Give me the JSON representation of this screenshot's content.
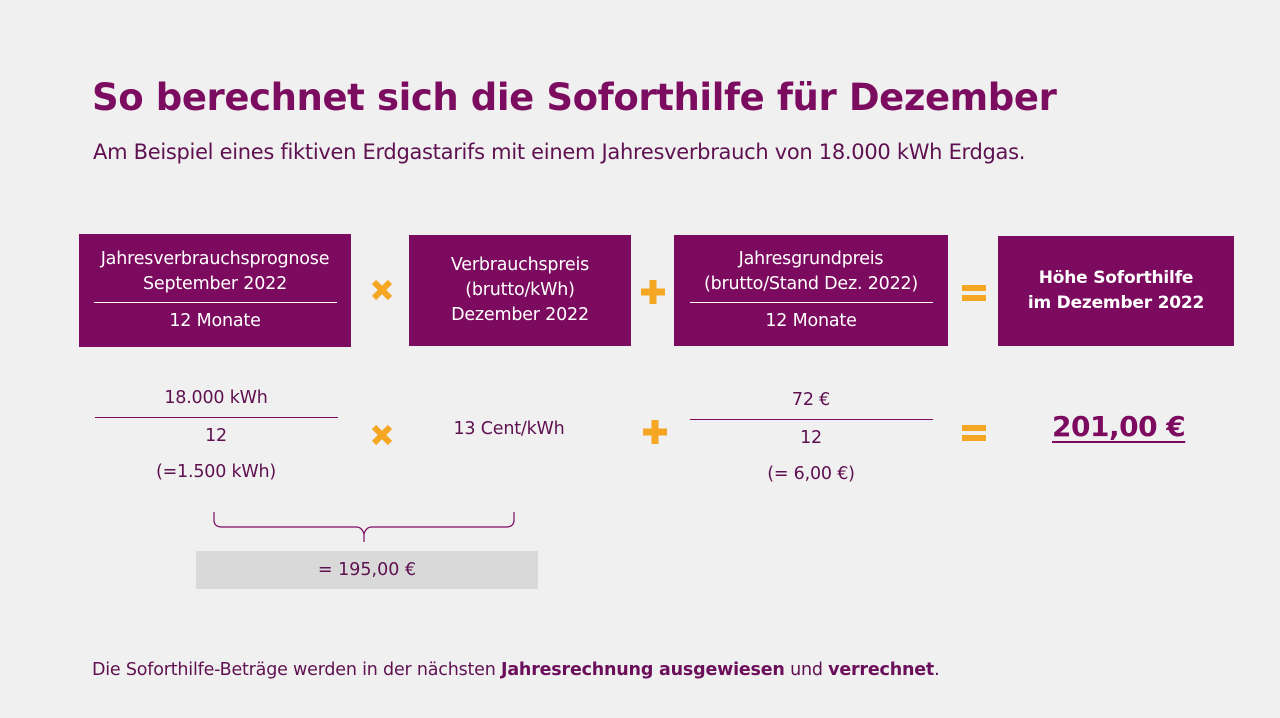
{
  "title": "So berechnet sich die Soforthilfe für Dezember",
  "subtitle": "Am Beispiel eines fiktiven Erdgastarifs mit einem Jahresverbrauch von 18.000 kWh Erdgas.",
  "boxes": {
    "b1": {
      "line1": "Jahresverbrauchsprognose",
      "line2": "September 2022",
      "line3": "12 Monate"
    },
    "b2": {
      "line1": "Verbrauchspreis",
      "line2": "(brutto/kWh)",
      "line3": "Dezember 2022"
    },
    "b3": {
      "line1": "Jahresgrundpreis",
      "line2": "(brutto/Stand Dez. 2022)",
      "line3": "12 Monate"
    },
    "b4": {
      "line1": "Höhe Soforthilfe",
      "line2": "im Dezember 2022"
    }
  },
  "calc": {
    "c1": {
      "numerator": "18.000 kWh",
      "denominator": "12",
      "note": "(=1.500 kWh)"
    },
    "c2": {
      "value": "13 Cent/kWh"
    },
    "c3": {
      "numerator": "72 €",
      "denominator": "12",
      "note": "(= 6,00 €)"
    },
    "result": "201,00 €"
  },
  "subtotal": "= 195,00 €",
  "footer": {
    "part1": "Die Soforthilfe-Beträge werden in der nächsten ",
    "bold1": "Jahresrechnung ausgewiesen",
    "part2": " und ",
    "bold2": "verrechnet",
    "part3": "."
  },
  "colors": {
    "accent": "#7c0a5f",
    "operator": "#f5a623",
    "grey_box": "#d9d9d9",
    "background": "#f0f0f0"
  },
  "icons": {
    "multiply": "multiply-icon",
    "plus": "plus-icon",
    "equals": "equals-icon",
    "brace": "brace-icon"
  }
}
